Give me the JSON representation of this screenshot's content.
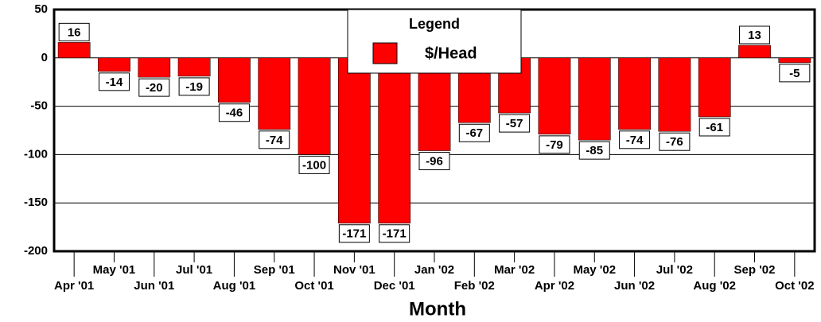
{
  "chart_data": {
    "type": "bar",
    "categories": [
      "Apr '01",
      "May '01",
      "Jun '01",
      "Jul '01",
      "Aug '01",
      "Sep '01",
      "Oct '01",
      "Nov '01",
      "Dec '01",
      "Jan '02",
      "Feb '02",
      "Mar '02",
      "Apr '02",
      "May '02",
      "Jun '02",
      "Jul '02",
      "Aug '02",
      "Sep '02",
      "Oct '02"
    ],
    "series": [
      {
        "name": "$/Head",
        "color": "#ff0000",
        "values": [
          16,
          -14,
          -20,
          -19,
          -46,
          -74,
          -100,
          -171,
          -171,
          -96,
          -67,
          -57,
          -79,
          -85,
          -74,
          -76,
          -61,
          13,
          -5
        ]
      }
    ],
    "ylim": [
      -200,
      50
    ],
    "yticks": [
      -200,
      -150,
      -100,
      -50,
      0,
      50
    ],
    "grid": true,
    "xlabel": "Month",
    "legend_title": "Legend",
    "legend": "top-center"
  }
}
